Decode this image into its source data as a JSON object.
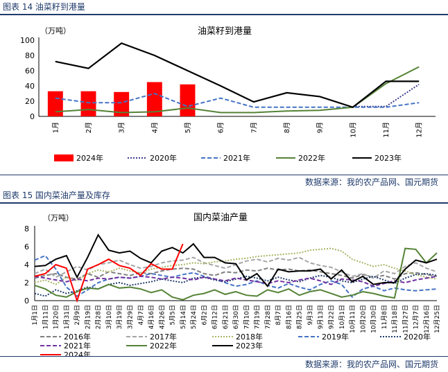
{
  "figure1": {
    "caption": "图表 14 油菜籽到港量",
    "source": "数据来源：我的农产品网、国元期货"
  },
  "figure2": {
    "caption": "图表 15 国内菜油产量及库存",
    "source": "数据来源：我的农产品网、国元期货"
  },
  "chart_data": [
    {
      "type": "bar",
      "title": "油菜籽到港量",
      "ylabel": "（万吨）",
      "ylim": [
        0,
        100
      ],
      "yticks": [
        0,
        20,
        40,
        60,
        80,
        100
      ],
      "categories": [
        "1月",
        "2月",
        "3月",
        "4月",
        "5月",
        "6月",
        "7月",
        "8月",
        "9月",
        "10月",
        "11月",
        "12月"
      ],
      "legend_position": "bottom",
      "series": [
        {
          "name": "2024年",
          "kind": "bar",
          "color": "#ff0000",
          "values": [
            33,
            33,
            32,
            45,
            42,
            null,
            null,
            null,
            null,
            null,
            null,
            null
          ]
        },
        {
          "name": "2020年",
          "kind": "line",
          "style": "dotted",
          "color": "#3a3a8c",
          "values": [
            null,
            null,
            null,
            null,
            null,
            null,
            null,
            null,
            null,
            13,
            13,
            42
          ]
        },
        {
          "name": "2021年",
          "kind": "line",
          "style": "dashed",
          "color": "#4472c4",
          "values": [
            24,
            18,
            18,
            30,
            13,
            24,
            12,
            12,
            12,
            12,
            12,
            18
          ]
        },
        {
          "name": "2022年",
          "kind": "line",
          "style": "solid",
          "color": "#548235",
          "values": [
            6,
            9,
            5,
            6,
            11,
            5,
            5,
            7,
            8,
            12,
            43,
            65
          ]
        },
        {
          "name": "2023年",
          "kind": "line",
          "style": "solid",
          "color": "#000000",
          "values": [
            72,
            63,
            96,
            80,
            60,
            40,
            19,
            31,
            26,
            12,
            46,
            46
          ]
        }
      ]
    },
    {
      "type": "line",
      "title": "国内菜油产量",
      "ylabel": "（万吨）",
      "ylim": [
        0,
        8
      ],
      "yticks": [
        0,
        2,
        4,
        6,
        8
      ],
      "x": [
        "1月1日",
        "1月11日",
        "1月20日",
        "1月31日",
        "2月9日",
        "2月19日",
        "2月28日",
        "3月10日",
        "3月19日",
        "3月29日",
        "4月7日",
        "4月16日",
        "4月26日",
        "5月5日",
        "5月14日",
        "5月24日",
        "6月2日",
        "6月12日",
        "6月21日",
        "6月30日",
        "7月10日",
        "7月19日",
        "7月28日",
        "8月7日",
        "8月16日",
        "8月25日",
        "9月3日",
        "9月13日",
        "9月22日",
        "10月1日",
        "10月11日",
        "10月20日",
        "10月30日",
        "11月8日",
        "11月18日",
        "11月27日",
        "12月7日",
        "12月16日",
        "12月25日"
      ],
      "legend_position": "bottom",
      "series": [
        {
          "name": "2016年",
          "style": "dashed",
          "color": "#7f7f7f",
          "values": [
            2.5,
            2.8,
            3,
            2.6,
            2.4,
            3,
            2.6,
            3.2,
            3,
            2.8,
            3.1,
            3,
            3.3,
            3.5,
            3.6,
            3.5,
            3,
            2.8,
            3.2,
            3.1,
            3.4,
            3.3,
            3.6,
            3.4,
            3.5,
            3.3,
            3.4,
            3.2,
            3,
            2.8,
            2.5,
            2.9,
            2.6,
            2.8,
            2.4,
            3,
            3.1,
            2.9,
            2.7
          ]
        },
        {
          "name": "2017年",
          "style": "dashed",
          "color": "#a5a5a5",
          "values": [
            3,
            3.5,
            2.6,
            3.2,
            3.8,
            3.4,
            4,
            4.2,
            4.5,
            4,
            3.6,
            3.8,
            4.2,
            4.4,
            4.5,
            4.8,
            4.2,
            3.9,
            3.6,
            4,
            4.4,
            4.6,
            4.3,
            4.7,
            4.5,
            4.8,
            4.2,
            3.9,
            3.7,
            3.2,
            2.7,
            3,
            2.5,
            3.3,
            3,
            3.8,
            4.2,
            3.6,
            3.2
          ]
        },
        {
          "name": "2018年",
          "style": "dotted",
          "color": "#a9b464",
          "values": [
            2,
            2.3,
            1.8,
            2.6,
            2.2,
            3,
            3.4,
            3.2,
            3.6,
            3.3,
            3.1,
            3.5,
            3.7,
            3.9,
            4,
            4.2,
            4.1,
            4.3,
            4.4,
            4.6,
            4.7,
            4.9,
            5,
            5.1,
            5.2,
            5.3,
            5.6,
            5.7,
            5.8,
            5.5,
            4.6,
            4.2,
            3.8,
            4,
            3.6,
            3.3,
            2.9,
            2.6,
            2.4
          ]
        },
        {
          "name": "2019年",
          "style": "dashed",
          "color": "#4472c4",
          "values": [
            4.5,
            5,
            3.5,
            1.5,
            0.5,
            1.2,
            2,
            2.4,
            2.6,
            2.5,
            2.7,
            3,
            2.8,
            2.6,
            2.9,
            3.1,
            2.7,
            2.4,
            2,
            1.6,
            1.8,
            2.2,
            1.7,
            1.4,
            1.9,
            1.5,
            1.2,
            1.8,
            2.2,
            1.8,
            0.4,
            1.3,
            1.6,
            1.1,
            1.4,
            1.2,
            1.1,
            1.2,
            1.3
          ]
        },
        {
          "name": "2020年",
          "style": "dotted",
          "color": "#1f3a6b",
          "values": [
            0.8,
            0.5,
            1.2,
            0.8,
            1.1,
            1.5,
            1.3,
            1.8,
            2,
            1.7,
            1.9,
            2.1,
            2.4,
            2.2,
            2,
            2.5,
            2.6,
            2.3,
            2.1,
            2.4,
            2.7,
            2.5,
            2.2,
            2.6,
            2.3,
            2.1,
            2.5,
            2.8,
            2.6,
            2.2,
            2,
            2.4,
            2.7,
            2.3,
            1.9,
            2.5,
            2.9,
            3,
            2.8
          ]
        },
        {
          "name": "2021年",
          "style": "dashed",
          "color": "#7030a0",
          "values": [
            2.7,
            2.5,
            2.3,
            2.1,
            2.4,
            2.2,
            2.5,
            2.4,
            2.6,
            2.5,
            2.7,
            2.6,
            2.4,
            2.6,
            2.5,
            2.3,
            2.6,
            2.4,
            2.2,
            2.5,
            2.3,
            2.1,
            1.9,
            2.2,
            2,
            2.3,
            2.5,
            2.2,
            1.8,
            2.4,
            2.3,
            2.1,
            1.6,
            1.9,
            2.2,
            2,
            2.3,
            2.5,
            2.7
          ]
        },
        {
          "name": "2022年",
          "style": "solid",
          "color": "#548235",
          "values": [
            1.7,
            1.3,
            0.6,
            0.4,
            1,
            1.4,
            1.3,
            1.8,
            1.4,
            1.5,
            1.3,
            0.9,
            1.2,
            0.4,
            0.1,
            0.6,
            0.8,
            1.2,
            0.7,
            1,
            0.6,
            0.5,
            1.2,
            0.9,
            1.3,
            0.6,
            1,
            1.2,
            0.8,
            0.4,
            0.6,
            1,
            0.8,
            0.5,
            0.3,
            5.8,
            5.7,
            4.2,
            5.3
          ]
        },
        {
          "name": "2023年",
          "style": "solid",
          "color": "#000000",
          "values": [
            3.8,
            3.9,
            4.6,
            5,
            2.6,
            4.8,
            7.3,
            5.6,
            5.3,
            5.5,
            4.7,
            4.2,
            5.5,
            5.9,
            5.3,
            6.3,
            4.8,
            4.8,
            4.2,
            4.1,
            2.3,
            3,
            1.6,
            3.5,
            3.2,
            3.3,
            3.3,
            3.5,
            2.4,
            3.4,
            2.1,
            2.7,
            1.8,
            2,
            2,
            3.5,
            4.5,
            4.2,
            4.6
          ]
        },
        {
          "name": "2024年",
          "style": "solid",
          "color": "#ff0000",
          "values": [
            2.7,
            3,
            4,
            3.6,
            0,
            3.5,
            4,
            4.6,
            3.9,
            3.6,
            2.8,
            4.1,
            3.5,
            3.5,
            6.3,
            null,
            null,
            null,
            null,
            null,
            null,
            null,
            null,
            null,
            null,
            null,
            null,
            null,
            null,
            null,
            null,
            null,
            null,
            null,
            null,
            null,
            null,
            null,
            null
          ]
        }
      ]
    }
  ]
}
